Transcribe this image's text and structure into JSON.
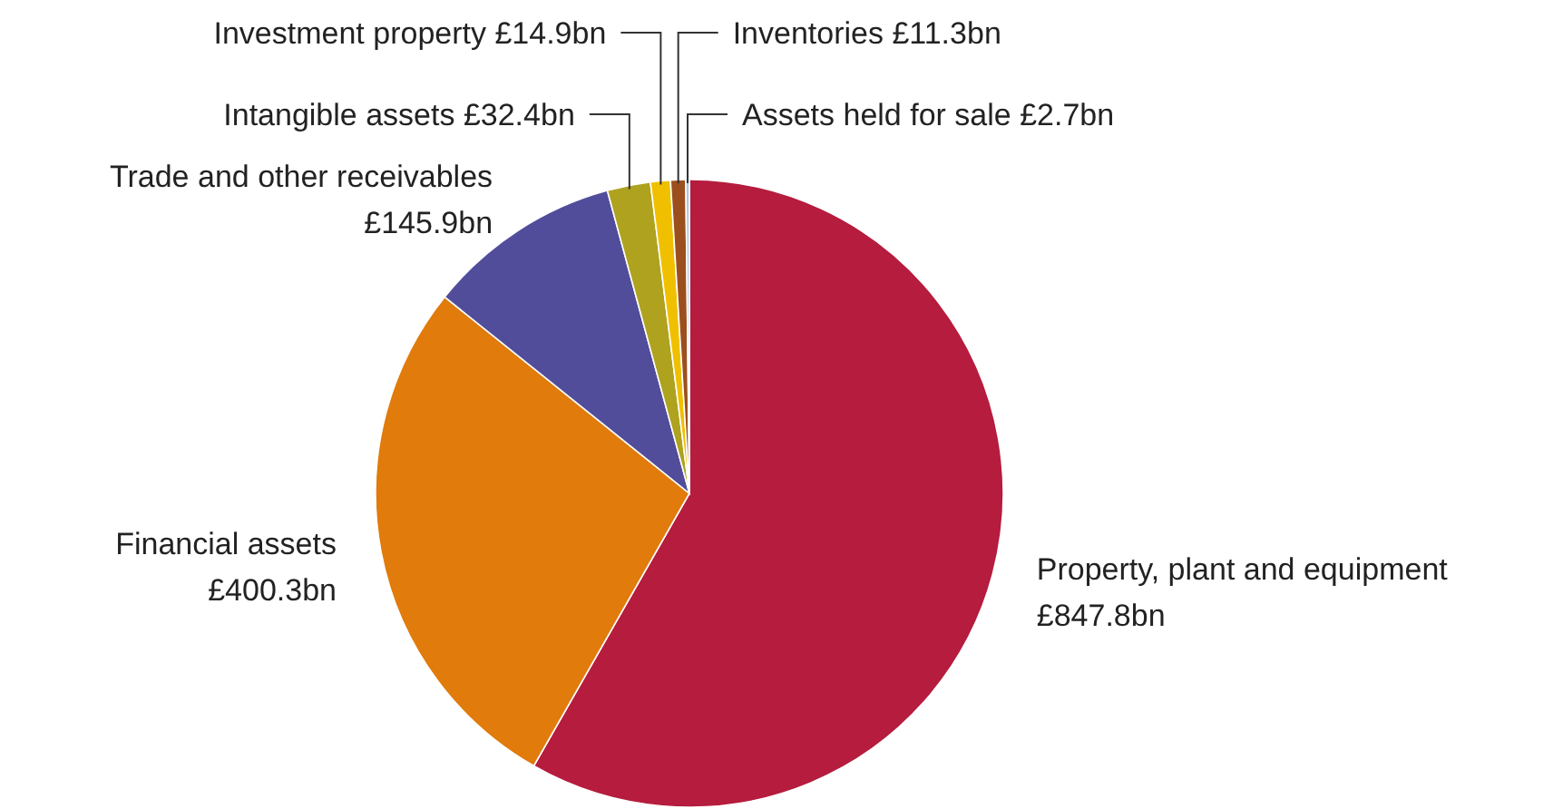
{
  "chart_data": {
    "type": "pie",
    "categories": [
      "Property, plant and equipment",
      "Financial assets",
      "Trade and other receivables",
      "Intangible assets",
      "Investment property",
      "Inventories",
      "Assets held for sale"
    ],
    "values": [
      847.8,
      400.3,
      145.9,
      32.4,
      14.9,
      11.3,
      2.7
    ],
    "value_labels": [
      "£847.8bn",
      "£400.3bn",
      "£145.9bn",
      "£32.4bn",
      "£14.9bn",
      "£11.3bn",
      "£2.7bn"
    ],
    "colors": [
      "#b51c3d",
      "#e07b0c",
      "#514d9b",
      "#aea21f",
      "#f0c000",
      "#9c4f1e",
      "#a9c8e8"
    ]
  }
}
